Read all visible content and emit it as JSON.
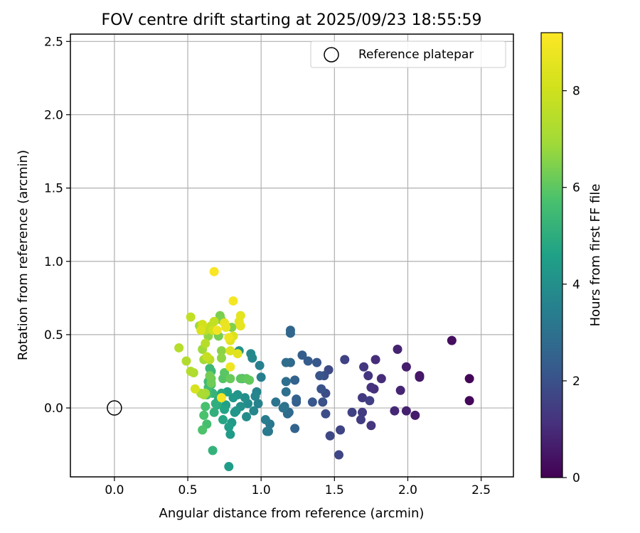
{
  "chart_data": {
    "type": "scatter",
    "title": "FOV centre drift starting at 2025/09/23 18:55:59",
    "xlabel": "Angular distance from reference (arcmin)",
    "ylabel": "Rotation from reference (arcmin)",
    "xlim": [
      -0.3,
      2.72
    ],
    "ylim": [
      -0.47,
      2.55
    ],
    "xticks": [
      0.0,
      0.5,
      1.0,
      1.5,
      2.0,
      2.5
    ],
    "xtick_labels": [
      "0.0",
      "0.5",
      "1.0",
      "1.5",
      "2.0",
      "2.5"
    ],
    "yticks": [
      0.0,
      0.5,
      1.0,
      1.5,
      2.0,
      2.5
    ],
    "ytick_labels": [
      "0.0",
      "0.5",
      "1.0",
      "1.5",
      "2.0",
      "2.5"
    ],
    "grid": true,
    "legend": {
      "placement": "top-right",
      "entries": [
        {
          "label": "Reference platepar",
          "marker": "open-circle"
        }
      ]
    },
    "reference_point": {
      "x": 0.0,
      "y": 0.0
    },
    "colorbar": {
      "label": "Hours from first FF file",
      "colormap": "viridis",
      "range": [
        0,
        9.2
      ],
      "ticks": [
        0,
        2,
        4,
        6,
        8
      ],
      "tick_labels": [
        "0",
        "2",
        "4",
        "6",
        "8"
      ]
    },
    "points": [
      {
        "x": 2.42,
        "y": 0.2,
        "c": 0.1
      },
      {
        "x": 2.42,
        "y": 0.05,
        "c": 0.15
      },
      {
        "x": 2.3,
        "y": 0.46,
        "c": 0.3
      },
      {
        "x": 2.08,
        "y": 0.22,
        "c": 0.5
      },
      {
        "x": 2.08,
        "y": 0.21,
        "c": 0.55
      },
      {
        "x": 2.05,
        "y": -0.05,
        "c": 0.6
      },
      {
        "x": 1.99,
        "y": 0.28,
        "c": 0.7
      },
      {
        "x": 1.99,
        "y": -0.02,
        "c": 0.75
      },
      {
        "x": 1.93,
        "y": 0.4,
        "c": 0.8
      },
      {
        "x": 1.95,
        "y": 0.12,
        "c": 0.85
      },
      {
        "x": 1.91,
        "y": -0.02,
        "c": 0.9
      },
      {
        "x": 1.82,
        "y": 0.2,
        "c": 1.0
      },
      {
        "x": 1.78,
        "y": 0.33,
        "c": 1.05
      },
      {
        "x": 1.77,
        "y": 0.13,
        "c": 1.1
      },
      {
        "x": 1.75,
        "y": 0.14,
        "c": 1.15
      },
      {
        "x": 1.73,
        "y": 0.22,
        "c": 1.2
      },
      {
        "x": 1.75,
        "y": -0.12,
        "c": 1.25
      },
      {
        "x": 1.7,
        "y": 0.28,
        "c": 1.3
      },
      {
        "x": 1.69,
        "y": 0.07,
        "c": 1.35
      },
      {
        "x": 1.69,
        "y": -0.03,
        "c": 1.4
      },
      {
        "x": 1.68,
        "y": -0.08,
        "c": 1.45
      },
      {
        "x": 1.74,
        "y": 0.05,
        "c": 1.5
      },
      {
        "x": 1.62,
        "y": -0.03,
        "c": 1.55
      },
      {
        "x": 1.57,
        "y": 0.33,
        "c": 1.6
      },
      {
        "x": 1.54,
        "y": -0.15,
        "c": 1.65
      },
      {
        "x": 1.53,
        "y": -0.32,
        "c": 1.7
      },
      {
        "x": 1.47,
        "y": -0.19,
        "c": 1.75
      },
      {
        "x": 1.46,
        "y": 0.26,
        "c": 1.8
      },
      {
        "x": 1.44,
        "y": 0.1,
        "c": 1.85
      },
      {
        "x": 1.44,
        "y": -0.04,
        "c": 1.9
      },
      {
        "x": 1.43,
        "y": 0.22,
        "c": 1.95
      },
      {
        "x": 1.42,
        "y": 0.04,
        "c": 2.0
      },
      {
        "x": 1.41,
        "y": 0.13,
        "c": 2.05
      },
      {
        "x": 1.4,
        "y": 0.22,
        "c": 2.1
      },
      {
        "x": 1.38,
        "y": 0.31,
        "c": 2.15
      },
      {
        "x": 1.35,
        "y": 0.04,
        "c": 2.2
      },
      {
        "x": 1.32,
        "y": 0.32,
        "c": 2.3
      },
      {
        "x": 1.28,
        "y": 0.36,
        "c": 2.35
      },
      {
        "x": 1.24,
        "y": 0.04,
        "c": 2.4
      },
      {
        "x": 1.24,
        "y": 0.06,
        "c": 2.45
      },
      {
        "x": 1.23,
        "y": 0.19,
        "c": 2.5
      },
      {
        "x": 1.23,
        "y": -0.14,
        "c": 2.55
      },
      {
        "x": 1.2,
        "y": 0.53,
        "c": 2.6
      },
      {
        "x": 1.2,
        "y": 0.51,
        "c": 2.65
      },
      {
        "x": 1.2,
        "y": 0.31,
        "c": 2.7
      },
      {
        "x": 1.19,
        "y": -0.03,
        "c": 2.75
      },
      {
        "x": 1.18,
        "y": -0.04,
        "c": 2.8
      },
      {
        "x": 1.17,
        "y": 0.31,
        "c": 2.85
      },
      {
        "x": 1.17,
        "y": 0.18,
        "c": 2.9
      },
      {
        "x": 1.17,
        "y": 0.11,
        "c": 2.95
      },
      {
        "x": 1.16,
        "y": 0.01,
        "c": 3.0
      },
      {
        "x": 1.15,
        "y": 0.0,
        "c": 3.05
      },
      {
        "x": 1.1,
        "y": 0.04,
        "c": 3.1
      },
      {
        "x": 1.06,
        "y": -0.11,
        "c": 3.2
      },
      {
        "x": 1.05,
        "y": -0.16,
        "c": 3.25
      },
      {
        "x": 1.04,
        "y": -0.16,
        "c": 3.3
      },
      {
        "x": 1.03,
        "y": -0.08,
        "c": 3.35
      },
      {
        "x": 1.0,
        "y": 0.21,
        "c": 3.45
      },
      {
        "x": 0.99,
        "y": 0.29,
        "c": 3.5
      },
      {
        "x": 0.98,
        "y": 0.03,
        "c": 3.55
      },
      {
        "x": 0.97,
        "y": 0.11,
        "c": 3.6
      },
      {
        "x": 0.96,
        "y": 0.08,
        "c": 3.65
      },
      {
        "x": 0.95,
        "y": -0.02,
        "c": 3.7
      },
      {
        "x": 0.94,
        "y": 0.34,
        "c": 3.75
      },
      {
        "x": 0.93,
        "y": 0.37,
        "c": 3.8
      },
      {
        "x": 0.91,
        "y": 0.03,
        "c": 3.85
      },
      {
        "x": 0.9,
        "y": -0.06,
        "c": 3.9
      },
      {
        "x": 0.89,
        "y": 0.07,
        "c": 3.95
      },
      {
        "x": 0.87,
        "y": 0.2,
        "c": 4.0
      },
      {
        "x": 0.86,
        "y": 0.01,
        "c": 4.05
      },
      {
        "x": 0.85,
        "y": 0.39,
        "c": 4.1
      },
      {
        "x": 0.84,
        "y": 0.09,
        "c": 4.15
      },
      {
        "x": 0.83,
        "y": -0.02,
        "c": 4.2
      },
      {
        "x": 0.82,
        "y": -0.03,
        "c": 4.25
      },
      {
        "x": 0.81,
        "y": 0.07,
        "c": 4.3
      },
      {
        "x": 0.8,
        "y": -0.1,
        "c": 4.35
      },
      {
        "x": 0.79,
        "y": -0.18,
        "c": 4.4
      },
      {
        "x": 0.78,
        "y": -0.4,
        "c": 4.45
      },
      {
        "x": 0.78,
        "y": -0.13,
        "c": 4.5
      },
      {
        "x": 0.77,
        "y": 0.11,
        "c": 4.55
      },
      {
        "x": 0.76,
        "y": 0.02,
        "c": 4.6
      },
      {
        "x": 0.75,
        "y": -0.01,
        "c": 4.7
      },
      {
        "x": 0.74,
        "y": -0.08,
        "c": 4.75
      },
      {
        "x": 0.73,
        "y": 0.1,
        "c": 4.8
      },
      {
        "x": 0.72,
        "y": 0.08,
        "c": 4.85
      },
      {
        "x": 0.71,
        "y": 0.06,
        "c": 4.9
      },
      {
        "x": 0.7,
        "y": 0.02,
        "c": 5.0
      },
      {
        "x": 0.69,
        "y": 0.03,
        "c": 5.05
      },
      {
        "x": 0.68,
        "y": -0.03,
        "c": 5.1
      },
      {
        "x": 0.67,
        "y": -0.29,
        "c": 5.2
      },
      {
        "x": 0.67,
        "y": 0.1,
        "c": 5.25
      },
      {
        "x": 0.66,
        "y": 0.16,
        "c": 5.3
      },
      {
        "x": 0.66,
        "y": 0.25,
        "c": 5.35
      },
      {
        "x": 0.65,
        "y": 0.27,
        "c": 5.4
      },
      {
        "x": 0.64,
        "y": 0.18,
        "c": 5.5
      },
      {
        "x": 0.64,
        "y": 0.14,
        "c": 5.55
      },
      {
        "x": 0.63,
        "y": 0.09,
        "c": 5.6
      },
      {
        "x": 0.63,
        "y": -0.11,
        "c": 5.65
      },
      {
        "x": 0.62,
        "y": 0.01,
        "c": 5.7
      },
      {
        "x": 0.61,
        "y": -0.05,
        "c": 5.75
      },
      {
        "x": 0.6,
        "y": -0.15,
        "c": 5.8
      },
      {
        "x": 0.74,
        "y": 0.2,
        "c": 5.9
      },
      {
        "x": 0.75,
        "y": 0.24,
        "c": 5.95
      },
      {
        "x": 0.86,
        "y": 0.2,
        "c": 6.0
      },
      {
        "x": 0.9,
        "y": 0.2,
        "c": 6.05
      },
      {
        "x": 0.92,
        "y": 0.19,
        "c": 6.1
      },
      {
        "x": 0.79,
        "y": 0.2,
        "c": 6.15
      },
      {
        "x": 0.66,
        "y": 0.2,
        "c": 6.2
      },
      {
        "x": 0.66,
        "y": 0.17,
        "c": 6.25
      },
      {
        "x": 0.65,
        "y": 0.22,
        "c": 6.3
      },
      {
        "x": 0.71,
        "y": 0.49,
        "c": 6.35
      },
      {
        "x": 0.72,
        "y": 0.63,
        "c": 6.4
      },
      {
        "x": 0.73,
        "y": 0.6,
        "c": 6.45
      },
      {
        "x": 0.8,
        "y": 0.55,
        "c": 6.5
      },
      {
        "x": 0.73,
        "y": 0.39,
        "c": 6.6
      },
      {
        "x": 0.73,
        "y": 0.34,
        "c": 6.65
      },
      {
        "x": 0.64,
        "y": 0.49,
        "c": 6.7
      },
      {
        "x": 0.58,
        "y": 0.56,
        "c": 6.8
      },
      {
        "x": 0.6,
        "y": 0.4,
        "c": 6.9
      },
      {
        "x": 0.61,
        "y": 0.33,
        "c": 7.0
      },
      {
        "x": 0.62,
        "y": 0.1,
        "c": 7.05
      },
      {
        "x": 0.61,
        "y": 0.09,
        "c": 7.1
      },
      {
        "x": 0.59,
        "y": 0.1,
        "c": 7.15
      },
      {
        "x": 0.54,
        "y": 0.24,
        "c": 7.2
      },
      {
        "x": 0.49,
        "y": 0.32,
        "c": 7.3
      },
      {
        "x": 0.52,
        "y": 0.25,
        "c": 7.35
      },
      {
        "x": 0.44,
        "y": 0.41,
        "c": 7.4
      },
      {
        "x": 0.62,
        "y": 0.44,
        "c": 7.45
      },
      {
        "x": 0.65,
        "y": 0.33,
        "c": 7.5
      },
      {
        "x": 0.62,
        "y": 0.53,
        "c": 7.6
      },
      {
        "x": 0.66,
        "y": 0.56,
        "c": 7.65
      },
      {
        "x": 0.52,
        "y": 0.62,
        "c": 7.7
      },
      {
        "x": 0.68,
        "y": 0.59,
        "c": 7.75
      },
      {
        "x": 0.63,
        "y": 0.35,
        "c": 7.8
      },
      {
        "x": 0.67,
        "y": 0.53,
        "c": 8.0
      },
      {
        "x": 0.6,
        "y": 0.57,
        "c": 8.1
      },
      {
        "x": 0.55,
        "y": 0.13,
        "c": 8.2
      },
      {
        "x": 0.59,
        "y": 0.53,
        "c": 8.3
      },
      {
        "x": 0.81,
        "y": 0.49,
        "c": 8.35
      },
      {
        "x": 0.79,
        "y": 0.39,
        "c": 8.4
      },
      {
        "x": 0.79,
        "y": 0.46,
        "c": 8.45
      },
      {
        "x": 0.84,
        "y": 0.37,
        "c": 8.5
      },
      {
        "x": 0.86,
        "y": 0.63,
        "c": 8.55
      },
      {
        "x": 0.85,
        "y": 0.59,
        "c": 8.6
      },
      {
        "x": 0.86,
        "y": 0.56,
        "c": 8.65
      },
      {
        "x": 0.75,
        "y": 0.58,
        "c": 8.7
      },
      {
        "x": 0.76,
        "y": 0.55,
        "c": 8.75
      },
      {
        "x": 0.78,
        "y": 0.48,
        "c": 8.8
      },
      {
        "x": 0.79,
        "y": 0.28,
        "c": 8.85
      },
      {
        "x": 0.7,
        "y": 0.53,
        "c": 8.9
      },
      {
        "x": 0.73,
        "y": 0.07,
        "c": 8.95
      },
      {
        "x": 0.81,
        "y": 0.73,
        "c": 9.0
      },
      {
        "x": 0.68,
        "y": 0.93,
        "c": 9.1
      }
    ]
  }
}
